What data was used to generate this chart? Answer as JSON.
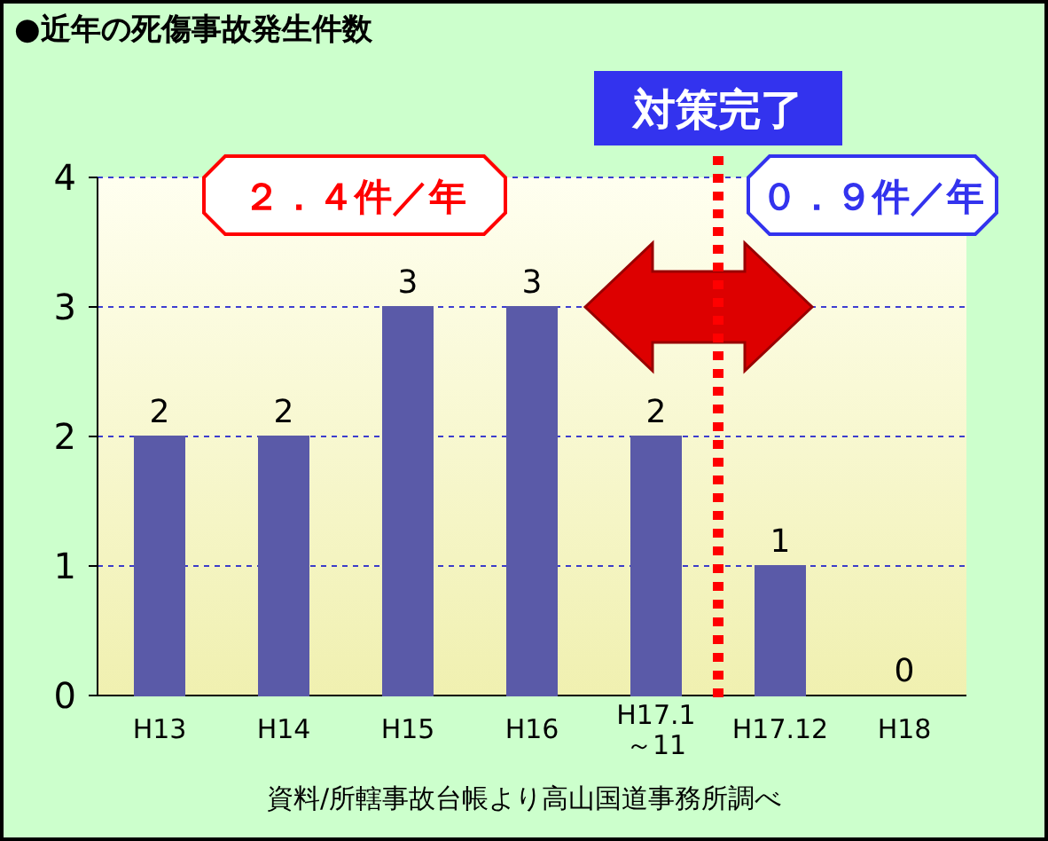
{
  "chart_data": {
    "type": "bar",
    "title": "●近年の死傷事故発生件数",
    "categories": [
      "H13",
      "H14",
      "H15",
      "H16",
      "H17.1\n～11",
      "H17.12",
      "H18"
    ],
    "values": [
      2,
      2,
      3,
      3,
      2,
      1,
      0
    ],
    "color": "#5a5aa8",
    "ylim": [
      0,
      4
    ],
    "yticks": [
      0,
      1,
      2,
      3,
      4
    ],
    "grid": "y",
    "data_labels": true,
    "annotations": [
      "２．４件／年",
      "０．９件／年",
      "資料/所轄事故台帳より高山国道事務所調べ",
      "対策完了"
    ]
  }
}
